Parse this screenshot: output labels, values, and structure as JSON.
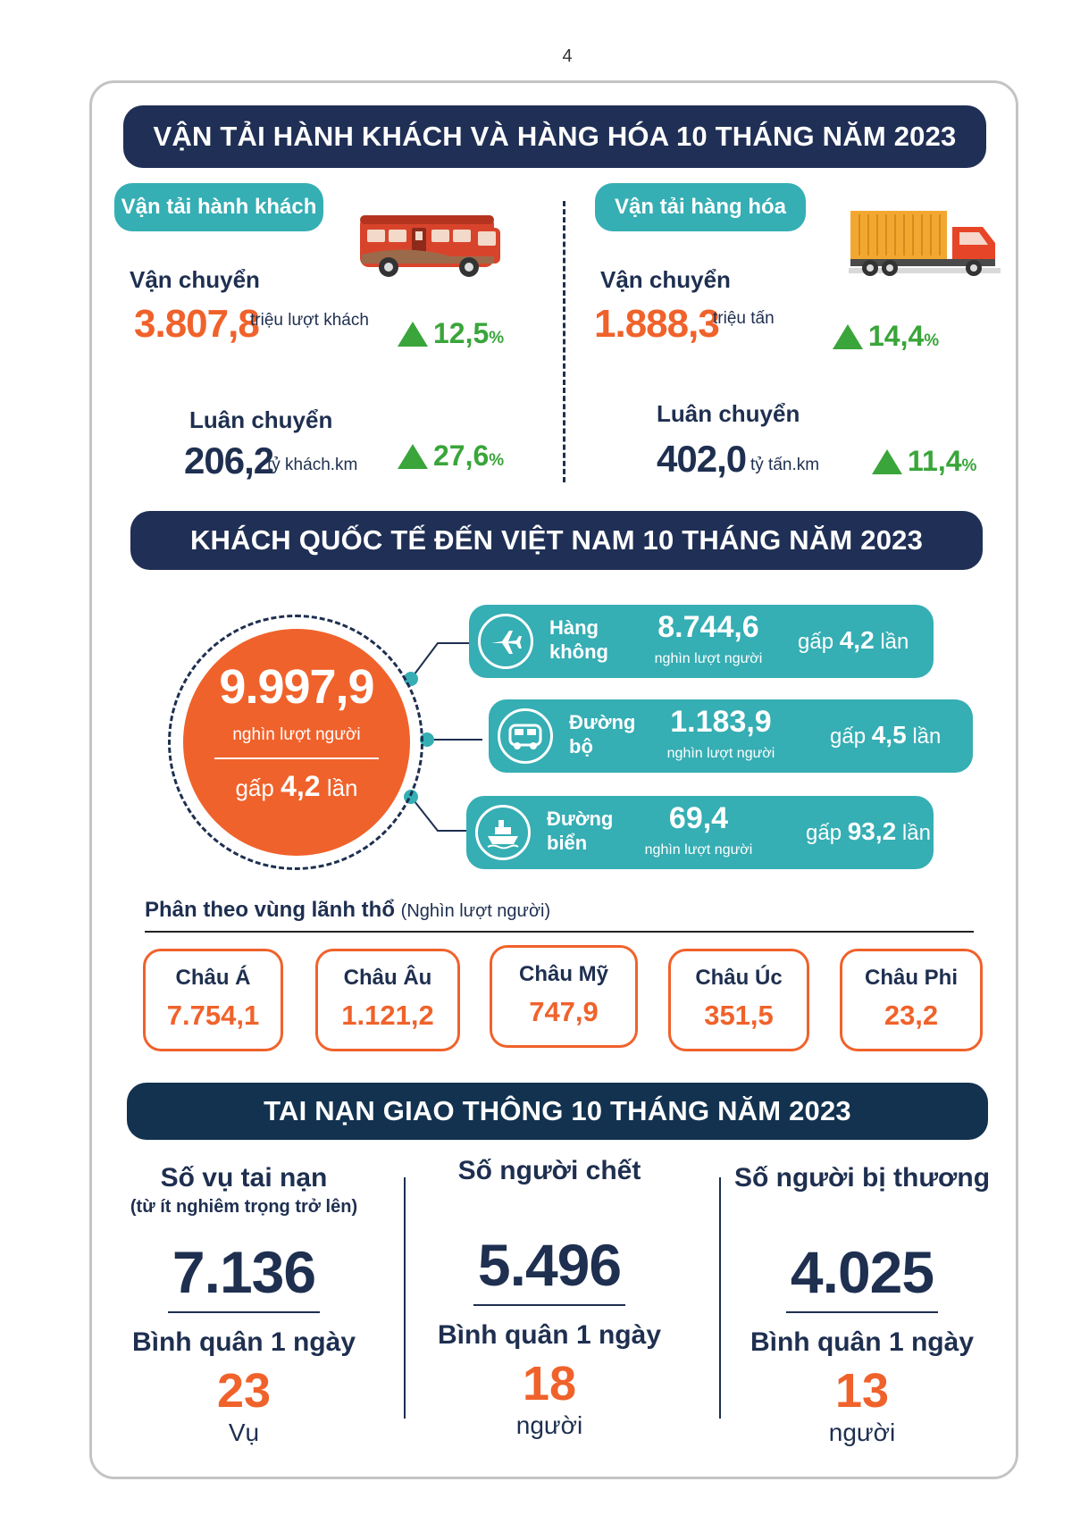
{
  "page_number": "4",
  "transport": {
    "banner": "VẬN TẢI HÀNH KHÁCH VÀ HÀNG HÓA 10 THÁNG NĂM 2023",
    "passenger": {
      "title": "Vận tải hành khách",
      "carried_label": "Vận chuyển",
      "carried_value": "3.807,8",
      "carried_unit": "triệu lượt khách",
      "carried_growth": "12,5",
      "rotation_label": "Luân chuyển",
      "rotation_value": "206,2",
      "rotation_unit": "tỷ khách.km",
      "rotation_growth": "27,6"
    },
    "freight": {
      "title": "Vận tải hàng hóa",
      "carried_label": "Vận chuyển",
      "carried_value": "1.888,3",
      "carried_unit": "triệu tấn",
      "carried_growth": "14,4",
      "rotation_label": "Luân chuyển",
      "rotation_value": "402,0",
      "rotation_unit": "tỷ tấn.km",
      "rotation_growth": "11,4"
    },
    "percent_sign": "%"
  },
  "visitors": {
    "banner": "KHÁCH QUỐC TẾ ĐẾN VIỆT NAM 10 THÁNG NĂM 2023",
    "total": "9.997,9",
    "total_unit": "nghìn lượt người",
    "total_mult_prefix": "gấp",
    "total_mult_value": "4,2",
    "total_mult_suffix": "lần",
    "modes": [
      {
        "label": "Hàng\nkhông",
        "value": "8.744,6",
        "unit": "nghìn lượt người",
        "mult_prefix": "gấp",
        "mult_value": "4,2",
        "mult_suffix": "lần",
        "icon": "airplane-icon"
      },
      {
        "label": "Đường\nbộ",
        "value": "1.183,9",
        "unit": "nghìn lượt người",
        "mult_prefix": "gấp",
        "mult_value": "4,5",
        "mult_suffix": "lần",
        "icon": "bus-icon"
      },
      {
        "label": "Đường\nbiển",
        "value": "69,4",
        "unit": "nghìn lượt người",
        "mult_prefix": "gấp",
        "mult_value": "93,2",
        "mult_suffix": "lần",
        "icon": "ship-icon"
      }
    ],
    "region_title": "Phân theo vùng lãnh thổ",
    "region_note": "(Nghìn lượt người)",
    "regions": [
      {
        "name": "Châu Á",
        "value": "7.754,1"
      },
      {
        "name": "Châu Âu",
        "value": "1.121,2"
      },
      {
        "name": "Châu Mỹ",
        "value": "747,9"
      },
      {
        "name": "Châu Úc",
        "value": "351,5"
      },
      {
        "name": "Châu Phi",
        "value": "23,2"
      }
    ]
  },
  "accidents": {
    "banner": "TAI NẠN GIAO THÔNG 10 THÁNG NĂM 2023",
    "columns": [
      {
        "title": "Số vụ tai nạn",
        "subtitle": "(từ ít nghiêm trọng trở lên)",
        "value": "7.136",
        "avg_label": "Bình quân 1 ngày",
        "avg_value": "23",
        "avg_unit": "Vụ"
      },
      {
        "title": "Số người chết",
        "subtitle": "",
        "value": "5.496",
        "avg_label": "Bình quân 1 ngày",
        "avg_value": "18",
        "avg_unit": "người"
      },
      {
        "title": "Số người bị thương",
        "subtitle": "",
        "value": "4.025",
        "avg_label": "Bình quân 1 ngày",
        "avg_value": "13",
        "avg_unit": "người"
      }
    ]
  },
  "colors": {
    "navy": "#1f2f55",
    "teal": "#35aeb4",
    "orange": "#f0622b",
    "green": "#3aa53a"
  }
}
